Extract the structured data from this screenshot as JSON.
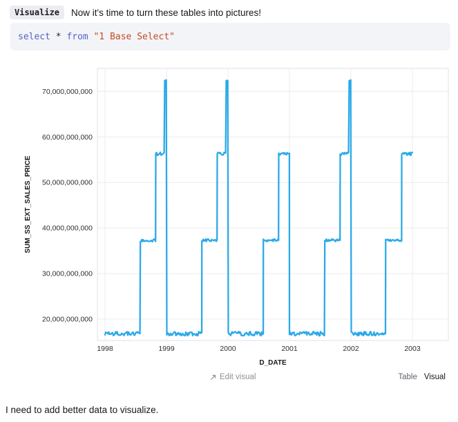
{
  "header": {
    "badge": "Visualize",
    "text": "Now it's time to turn these tables into pictures!"
  },
  "code": {
    "keyword_select": "select",
    "operator": "*",
    "keyword_from": "from",
    "string": "\"1 Base Select\""
  },
  "chart_data": {
    "type": "line",
    "title": "",
    "xlabel": "D_DATE",
    "ylabel": "SUM_SS_EXT_SALES_PRICE",
    "legend": "none",
    "grid": true,
    "line_color": "#2ba9e9",
    "grid_color": "#ececf0",
    "border_color": "#e2e2e7",
    "xlim": [
      1997.876,
      2003.584
    ],
    "ylim": [
      15300000000,
      75060000000
    ],
    "x_ticks": [
      {
        "value": 1998,
        "label": "1998"
      },
      {
        "value": 1999,
        "label": "1999"
      },
      {
        "value": 2000,
        "label": "2000"
      },
      {
        "value": 2001,
        "label": "2001"
      },
      {
        "value": 2002,
        "label": "2002"
      },
      {
        "value": 2003,
        "label": "2003"
      }
    ],
    "y_ticks": [
      {
        "value": 20000000000,
        "label": "20,000,000,000"
      },
      {
        "value": 30000000000,
        "label": "30,000,000,000"
      },
      {
        "value": 40000000000,
        "label": "40,000,000,000"
      },
      {
        "value": 50000000000,
        "label": "50,000,000,000"
      },
      {
        "value": 60000000000,
        "label": "60,000,000,000"
      },
      {
        "value": 70000000000,
        "label": "70,000,000,000"
      }
    ],
    "series": [
      {
        "name": "SUM_SS_EXT_SALES_PRICE",
        "description": "Daily step pattern per year: low ~16.8B Jan-Jul, ~37.3B Aug-Oct, ~56.3B Nov-Dec, year-end spike ~72.4B (no spike at end of 2000; data ends late 2002 without spike)",
        "segments": [
          {
            "from": 1998.0,
            "to": 1998.575,
            "value": 16800000000,
            "noise": 450000000
          },
          {
            "from": 1998.575,
            "to": 1998.825,
            "value": 37300000000,
            "noise": 300000000
          },
          {
            "from": 1998.825,
            "to": 1998.972,
            "value": 56300000000,
            "noise": 350000000
          },
          {
            "from": 1998.972,
            "to": 1999.005,
            "value": 72400000000,
            "noise": 120000000
          },
          {
            "from": 1999.005,
            "to": 1999.575,
            "value": 16800000000,
            "noise": 450000000
          },
          {
            "from": 1999.575,
            "to": 1999.825,
            "value": 37300000000,
            "noise": 300000000
          },
          {
            "from": 1999.825,
            "to": 1999.972,
            "value": 56300000000,
            "noise": 350000000
          },
          {
            "from": 1999.972,
            "to": 2000.005,
            "value": 72400000000,
            "noise": 120000000
          },
          {
            "from": 2000.005,
            "to": 2000.575,
            "value": 16800000000,
            "noise": 450000000
          },
          {
            "from": 2000.575,
            "to": 2000.825,
            "value": 37300000000,
            "noise": 300000000
          },
          {
            "from": 2000.825,
            "to": 2001.0,
            "value": 56300000000,
            "noise": 350000000
          },
          {
            "from": 2001.0,
            "to": 2001.575,
            "value": 16800000000,
            "noise": 450000000
          },
          {
            "from": 2001.575,
            "to": 2001.825,
            "value": 37300000000,
            "noise": 300000000
          },
          {
            "from": 2001.825,
            "to": 2001.972,
            "value": 56300000000,
            "noise": 350000000
          },
          {
            "from": 2001.972,
            "to": 2002.005,
            "value": 72400000000,
            "noise": 120000000
          },
          {
            "from": 2002.005,
            "to": 2002.565,
            "value": 16800000000,
            "noise": 450000000
          },
          {
            "from": 2002.565,
            "to": 2002.825,
            "value": 37300000000,
            "noise": 300000000
          },
          {
            "from": 2002.825,
            "to": 2003.01,
            "value": 56300000000,
            "noise": 350000000
          }
        ]
      }
    ]
  },
  "footer": {
    "edit_visual": "Edit visual",
    "tabs": [
      {
        "label": "Table",
        "active": false
      },
      {
        "label": "Visual",
        "active": true
      }
    ]
  },
  "note": "I need to add better data to visualize."
}
